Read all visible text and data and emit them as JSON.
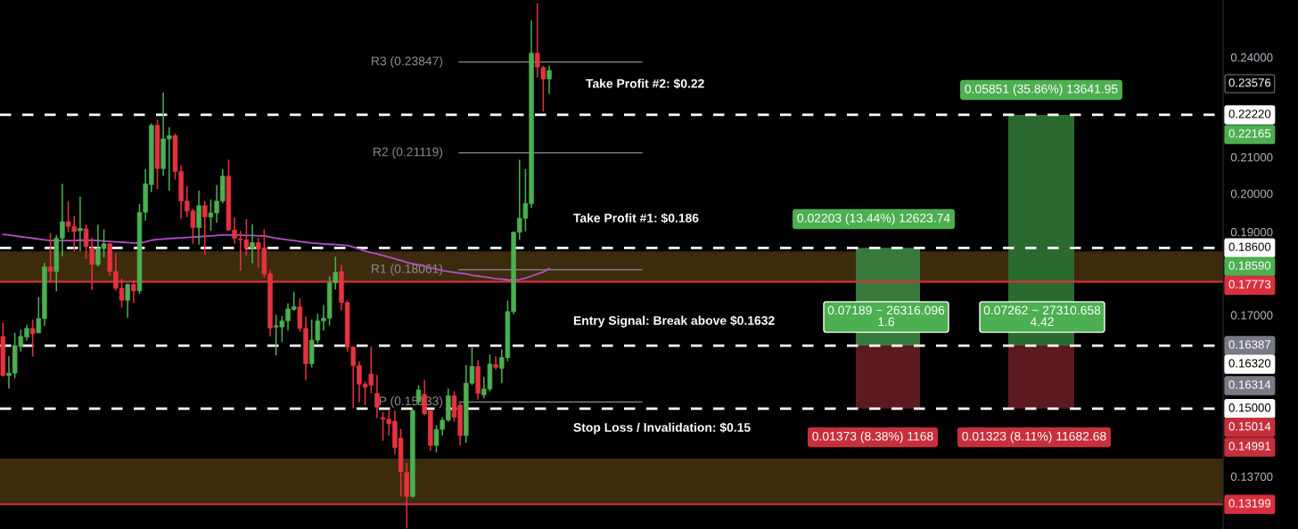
{
  "chart_data": {
    "type": "candlestick",
    "categories": [
      null,
      null,
      null,
      null,
      null,
      null,
      null,
      null,
      null,
      null,
      null,
      null,
      null,
      null,
      null,
      null,
      null,
      null,
      null,
      null,
      null,
      null,
      null,
      null,
      null,
      null,
      null,
      null,
      null,
      null,
      null,
      null,
      null,
      null,
      null,
      null,
      null,
      null,
      null,
      null,
      null,
      null,
      null,
      null,
      null,
      null,
      null,
      null,
      null,
      null,
      null,
      null,
      null,
      null,
      null,
      null,
      null,
      null,
      null,
      null,
      null,
      null,
      null,
      null,
      null,
      null,
      null,
      null,
      null,
      null,
      null,
      null,
      null,
      null,
      null,
      null,
      null,
      null,
      null,
      null,
      null,
      null,
      null,
      null,
      null,
      null,
      null,
      null,
      null,
      null,
      null,
      null,
      null,
      null,
      null,
      null,
      null,
      null,
      null,
      null,
      null,
      null,
      null,
      null,
      null,
      null,
      null,
      null,
      null,
      null,
      null,
      null,
      null,
      null,
      null,
      null,
      null,
      null,
      null,
      null,
      null,
      null,
      null,
      null,
      null,
      null,
      null,
      null,
      null,
      null,
      null,
      null,
      null,
      null,
      null,
      null,
      null,
      null,
      null,
      null,
      null,
      null,
      null,
      null,
      null,
      null,
      null,
      null,
      null,
      null,
      null,
      null,
      null,
      null,
      null,
      null,
      null,
      null,
      null,
      null,
      null,
      null,
      null,
      null,
      null,
      null,
      null,
      null,
      null,
      null,
      null,
      null,
      null,
      null,
      null,
      null,
      null,
      null,
      null,
      null,
      null,
      null,
      null,
      null,
      null,
      null,
      null,
      null,
      null,
      null,
      null,
      null,
      null,
      null,
      null,
      null,
      null,
      null,
      null,
      null,
      null,
      null,
      null,
      null,
      null,
      null
    ],
    "ohlc": [
      [
        0.1652,
        0.1683,
        0.1566,
        0.1568
      ],
      [
        0.1568,
        0.1609,
        0.1541,
        0.1573
      ],
      [
        0.1573,
        0.166,
        0.1562,
        0.1632
      ],
      [
        0.163,
        0.1667,
        0.1619,
        0.1652
      ],
      [
        0.1651,
        0.1678,
        0.1643,
        0.167
      ],
      [
        0.167,
        0.169,
        0.1608,
        0.1658
      ],
      [
        0.166,
        0.1741,
        0.166,
        0.1692
      ],
      [
        0.1692,
        0.1823,
        0.1676,
        0.1813
      ],
      [
        0.1813,
        0.1897,
        0.1777,
        0.1802
      ],
      [
        0.1802,
        0.1892,
        0.1755,
        0.1884
      ],
      [
        0.1884,
        0.2026,
        0.1839,
        0.1926
      ],
      [
        0.1926,
        0.198,
        0.1899,
        0.1914
      ],
      [
        0.1914,
        0.1941,
        0.185,
        0.1901
      ],
      [
        0.1903,
        0.1992,
        0.1852,
        0.1909
      ],
      [
        0.1908,
        0.1919,
        0.1832,
        0.1863
      ],
      [
        0.186,
        0.1885,
        0.1758,
        0.1819
      ],
      [
        0.1819,
        0.1919,
        0.1814,
        0.1858
      ],
      [
        0.1858,
        0.1907,
        0.1836,
        0.187
      ],
      [
        0.187,
        0.1873,
        0.1791,
        0.1802
      ],
      [
        0.1802,
        0.1847,
        0.1756,
        0.1762
      ],
      [
        0.1762,
        0.1785,
        0.1717,
        0.1734
      ],
      [
        0.1734,
        0.1773,
        0.1694,
        0.1771
      ],
      [
        0.1771,
        0.1782,
        0.1728,
        0.1756
      ],
      [
        0.1756,
        0.1972,
        0.1749,
        0.195
      ],
      [
        0.1951,
        0.2066,
        0.1929,
        0.2026
      ],
      [
        0.2024,
        0.2197,
        0.2004,
        0.2191
      ],
      [
        0.2191,
        0.2208,
        0.2012,
        0.2068
      ],
      [
        0.2068,
        0.2289,
        0.2048,
        0.2152
      ],
      [
        0.2152,
        0.2186,
        0.2008,
        0.2161
      ],
      [
        0.2161,
        0.2167,
        0.2038,
        0.206
      ],
      [
        0.206,
        0.2077,
        0.1934,
        0.198
      ],
      [
        0.198,
        0.202,
        0.1938,
        0.1954
      ],
      [
        0.1954,
        0.196,
        0.187,
        0.1911
      ],
      [
        0.1911,
        0.2008,
        0.1868,
        0.1968
      ],
      [
        0.1968,
        0.198,
        0.1843,
        0.1938
      ],
      [
        0.1938,
        0.1984,
        0.1903,
        0.1949
      ],
      [
        0.1949,
        0.2023,
        0.1924,
        0.198
      ],
      [
        0.198,
        0.2066,
        0.1974,
        0.2047
      ],
      [
        0.2047,
        0.2093,
        0.1903,
        0.1905
      ],
      [
        0.1905,
        0.1937,
        0.187,
        0.1884
      ],
      [
        0.1882,
        0.1903,
        0.1804,
        0.188
      ],
      [
        0.188,
        0.1933,
        0.1841,
        0.1859
      ],
      [
        0.1859,
        0.192,
        0.1822,
        0.1873
      ],
      [
        0.1873,
        0.1885,
        0.1812,
        0.1856
      ],
      [
        0.186,
        0.1907,
        0.1787,
        0.1796
      ],
      [
        0.1796,
        0.1806,
        0.1652,
        0.1671
      ],
      [
        0.1673,
        0.1701,
        0.1611,
        0.1676
      ],
      [
        0.1673,
        0.1698,
        0.164,
        0.1687
      ],
      [
        0.1687,
        0.1727,
        0.1665,
        0.1714
      ],
      [
        0.1713,
        0.1754,
        0.171,
        0.1719
      ],
      [
        0.1719,
        0.1739,
        0.1663,
        0.167
      ],
      [
        0.167,
        0.1697,
        0.1558,
        0.1593
      ],
      [
        0.1593,
        0.169,
        0.1585,
        0.1644
      ],
      [
        0.1644,
        0.1703,
        0.1637,
        0.1687
      ],
      [
        0.1687,
        0.1723,
        0.1665,
        0.1693
      ],
      [
        0.1693,
        0.179,
        0.1676,
        0.1775
      ],
      [
        0.1775,
        0.1838,
        0.1759,
        0.18
      ],
      [
        0.1802,
        0.1818,
        0.171,
        0.1729
      ],
      [
        0.1729,
        0.1733,
        0.1619,
        0.1629
      ],
      [
        0.1629,
        0.1629,
        0.1501,
        0.1589
      ],
      [
        0.1589,
        0.1598,
        0.1513,
        0.155
      ],
      [
        0.155,
        0.1555,
        0.1507,
        0.1544
      ],
      [
        0.1571,
        0.163,
        0.1531,
        0.1548
      ],
      [
        0.1531,
        0.1569,
        0.1481,
        0.1503
      ],
      [
        0.1482,
        0.1493,
        0.1437,
        0.1479
      ],
      [
        0.1479,
        0.1496,
        0.1447,
        0.147
      ],
      [
        0.1475,
        0.1496,
        0.1412,
        0.1424
      ],
      [
        0.1442,
        0.146,
        0.1334,
        0.1379
      ],
      [
        0.1377,
        0.1395,
        0.1278,
        0.1334
      ],
      [
        0.1334,
        0.15,
        0.1331,
        0.1496
      ],
      [
        0.1514,
        0.1548,
        0.1507,
        0.1538
      ],
      [
        0.1529,
        0.1559,
        0.1487,
        0.149
      ],
      [
        0.1496,
        0.1496,
        0.1418,
        0.1428
      ],
      [
        0.1428,
        0.1467,
        0.1415,
        0.1459
      ],
      [
        0.1459,
        0.1483,
        0.1447,
        0.1477
      ],
      [
        0.1477,
        0.1541,
        0.1474,
        0.1526
      ],
      [
        0.1526,
        0.1535,
        0.1474,
        0.1483
      ],
      [
        0.1507,
        0.1514,
        0.1428,
        0.1447
      ],
      [
        0.1447,
        0.159,
        0.1433,
        0.1552
      ],
      [
        0.1552,
        0.1628,
        0.1548,
        0.1587
      ],
      [
        0.1587,
        0.1601,
        0.1518,
        0.1531
      ],
      [
        0.1528,
        0.1565,
        0.1521,
        0.154
      ],
      [
        0.154,
        0.1613,
        0.1535,
        0.1592
      ],
      [
        0.1591,
        0.1609,
        0.158,
        0.1585
      ],
      [
        0.1583,
        0.1624,
        0.1552,
        0.1606
      ],
      [
        0.1606,
        0.1733,
        0.1598,
        0.1708
      ],
      [
        0.1708,
        0.1901,
        0.1702,
        0.1899
      ],
      [
        0.1899,
        0.2092,
        0.188,
        0.1935
      ],
      [
        0.1935,
        0.2067,
        0.1901,
        0.1974
      ],
      [
        0.1973,
        0.2522,
        0.1962,
        0.2413
      ],
      [
        0.2413,
        0.2579,
        0.2336,
        0.2369
      ],
      [
        0.2367,
        0.2373,
        0.2232,
        0.2331
      ],
      [
        0.2331,
        0.2373,
        0.2285,
        0.2358
      ],
      null,
      null,
      null,
      null,
      null,
      null,
      null,
      null,
      null,
      null,
      null,
      null,
      null,
      null,
      null,
      null,
      null,
      null,
      null,
      null,
      null,
      null,
      null,
      null,
      null,
      null,
      null,
      null,
      null,
      null,
      null,
      null,
      null,
      null,
      null,
      null,
      null,
      null,
      null,
      null,
      null,
      null,
      null,
      null,
      null,
      null,
      null,
      null,
      null,
      null,
      null,
      null,
      null,
      null,
      null,
      null,
      null,
      null,
      null,
      null,
      null,
      null,
      null,
      null,
      null,
      null,
      null,
      null,
      null,
      null,
      null,
      null,
      null,
      null,
      null,
      null,
      null,
      null,
      null,
      null,
      null,
      null,
      null,
      null,
      null,
      null,
      null,
      null,
      null,
      null,
      null,
      null,
      null,
      null,
      null,
      null,
      null,
      null,
      null,
      null,
      null,
      null,
      null,
      null,
      null,
      null,
      null,
      null,
      null,
      null,
      null,
      null,
      null
    ],
    "series": [
      {
        "type": "line",
        "color": "#b24fc8",
        "values": [
          0.1894,
          0.1892,
          0.189,
          0.1888,
          0.1886,
          0.1884,
          0.1882,
          0.188,
          0.1878,
          0.1878,
          0.1878,
          0.1878,
          0.1878,
          0.1879,
          0.1879,
          0.1879,
          0.1878,
          0.1877,
          0.1876,
          0.1875,
          0.1874,
          0.1873,
          0.1872,
          0.1872,
          0.1875,
          0.1879,
          0.1881,
          0.1882,
          0.1883,
          0.1884,
          0.1885,
          0.1886,
          0.1887,
          0.1888,
          0.1889,
          0.189,
          0.1891,
          0.1892,
          0.1892,
          0.1892,
          0.1892,
          0.1891,
          0.1891,
          0.189,
          0.189,
          0.1887,
          0.1884,
          0.1882,
          0.188,
          0.1878,
          0.1876,
          0.1874,
          0.1872,
          0.1871,
          0.187,
          0.1869,
          0.1868,
          0.1867,
          0.1866,
          0.1862,
          0.1857,
          0.1852,
          0.1848,
          0.1845,
          0.1841,
          0.1837,
          0.1833,
          0.1829,
          0.1824,
          0.1821,
          0.1818,
          0.1815,
          0.1811,
          0.1808,
          0.1804,
          0.1802,
          0.18,
          0.1798,
          0.1796,
          0.1793,
          0.1791,
          0.1789,
          0.1787,
          0.1785,
          0.1784,
          0.1782,
          0.1781,
          0.1783,
          0.1786,
          0.1791,
          0.1796,
          0.1801,
          0.1809,
          null,
          null,
          null,
          null,
          null,
          null,
          null,
          null,
          null,
          null,
          null,
          null,
          null,
          null,
          null,
          null,
          null,
          null,
          null,
          null,
          null,
          null,
          null,
          null,
          null,
          null,
          null,
          null,
          null,
          null,
          null,
          null,
          null,
          null,
          null,
          null,
          null,
          null,
          null,
          null,
          null,
          null,
          null,
          null,
          null,
          null,
          null,
          null,
          null,
          null,
          null,
          null,
          null,
          null,
          null,
          null,
          null,
          null,
          null,
          null,
          null,
          null,
          null,
          null,
          null,
          null,
          null,
          null,
          null,
          null,
          null,
          null,
          null,
          null,
          null,
          null,
          null,
          null,
          null,
          null,
          null,
          null,
          null,
          null,
          null,
          null,
          null,
          null,
          null,
          null,
          null,
          null,
          null,
          null,
          null,
          null,
          null,
          null,
          null,
          null,
          null,
          null,
          null,
          null,
          null,
          null,
          null,
          null,
          null,
          null,
          null,
          null,
          null
        ]
      }
    ],
    "log": "y",
    "ylim": [
      0.1277,
      0.2591
    ],
    "yticks": [
      {
        "value": 0.137,
        "label": "0.13700"
      },
      {
        "value": 0.17,
        "label": "0.17000"
      },
      {
        "value": 0.19,
        "label": "0.19000"
      },
      {
        "value": 0.2,
        "label": "0.20000"
      },
      {
        "value": 0.21,
        "label": "0.21000"
      },
      {
        "value": 0.24,
        "label": "0.24000"
      }
    ],
    "tick_labels": "y",
    "bands": [
      {
        "axis": "y",
        "from": 0.17773,
        "to": 0.1851,
        "color": "#3d2b0e"
      },
      {
        "axis": "y",
        "from": 0.13199,
        "to": 0.1403,
        "color": "#3d2b0e"
      },
      {
        "axis": "y",
        "from": 0.1632,
        "to": 0.186,
        "color": "#37793a"
      },
      {
        "axis": "y",
        "from": 0.15,
        "to": 0.1632,
        "color": "#5c1a20"
      },
      {
        "axis": "y",
        "from": 0.1632,
        "to": 0.2222,
        "color": "#2b6a2f"
      },
      {
        "axis": "y",
        "from": 0.15,
        "to": 0.1632,
        "color": "#5c1a20"
      }
    ],
    "ref_lines": [
      {
        "axis": "y",
        "value": 0.2222,
        "label": "0.22220",
        "color": "#ffffff",
        "line_style": "dashed"
      },
      {
        "axis": "y",
        "value": 0.186,
        "label": "0.18600",
        "color": "#ffffff",
        "line_style": "dashed"
      },
      {
        "axis": "y",
        "value": 0.1632,
        "label": "0.16320",
        "color": "#ffffff",
        "line_style": "dashed"
      },
      {
        "axis": "y",
        "value": 0.15,
        "label": "0.15000",
        "color": "#ffffff",
        "line_style": "dashed"
      },
      {
        "axis": "y",
        "value": 0.17773,
        "label": "0.17773",
        "color": "#d8303f",
        "line_style": "solid"
      },
      {
        "axis": "y",
        "value": 0.13199,
        "label": "0.13199",
        "color": "#d8303f",
        "line_style": "solid"
      },
      {
        "axis": "y",
        "value": 0.23847,
        "label": "R3 (0.23847)",
        "color": "#8c8c8c",
        "line_style": "solid"
      },
      {
        "axis": "y",
        "value": 0.21119,
        "label": "R2 (0.21119)",
        "color": "#8c8c8c",
        "line_style": "solid"
      },
      {
        "axis": "y",
        "value": 0.18061,
        "label": "R1 (0.18061)",
        "color": "#8c8c8c",
        "line_style": "solid"
      },
      {
        "axis": "y",
        "value": 0.15133,
        "label": "P (0.15133)",
        "color": "#8c8c8c",
        "line_style": "solid"
      }
    ],
    "annotations": [
      "Take Profit #2: $0.22",
      "Take Profit #1: $0.186",
      "Entry Signal: Break above $0.1632",
      "Stop Loss / Invalidation: $0.15",
      "0.05851 (35.86%) 13641.95",
      "0.02203 (13.44%) 12623.74",
      "0.07189 ~ 26316.096\n1.6",
      "0.07262 ~ 27310.658\n4.42",
      "0.01373 (8.38%) 1168",
      "0.01323 (8.11%) 11682.68",
      "0.23576",
      "0.22165",
      "0.18590",
      "0.16387",
      "0.16314",
      "0.15014",
      "0.14991"
    ]
  }
}
